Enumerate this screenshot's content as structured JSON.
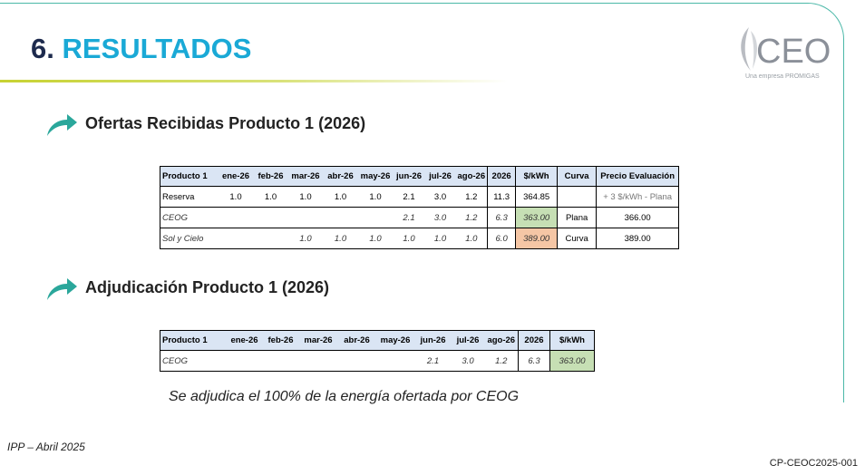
{
  "title": {
    "number": "6.",
    "word": "RESULTADOS"
  },
  "logo": {
    "text": "CEO",
    "subtitle": "Una empresa PROMIGAS"
  },
  "section1": {
    "title": "Ofertas Recibidas Producto 1 (2026)",
    "icon": "arrow-right-icon"
  },
  "section2": {
    "title": "Adjudicación Producto 1 (2026)",
    "icon": "arrow-right-icon"
  },
  "table1": {
    "headers": [
      "Producto 1",
      "ene-26",
      "feb-26",
      "mar-26",
      "abr-26",
      "may-26",
      "jun-26",
      "jul-26",
      "ago-26",
      "2026",
      "$/kWh",
      "Curva",
      "Precio Evaluación"
    ],
    "rows": [
      [
        "Reserva",
        "1.0",
        "1.0",
        "1.0",
        "1.0",
        "1.0",
        "2.1",
        "3.0",
        "1.2",
        "11.3",
        "364.85",
        "",
        "+ 3 $/kWh - Plana"
      ],
      [
        "CEOG",
        "",
        "",
        "",
        "",
        "",
        "2.1",
        "3.0",
        "1.2",
        "6.3",
        "363.00",
        "Plana",
        "366.00"
      ],
      [
        "Sol y Cielo",
        "",
        "",
        "1.0",
        "1.0",
        "1.0",
        "1.0",
        "1.0",
        "1.0",
        "6.0",
        "389.00",
        "Curva",
        "389.00"
      ]
    ]
  },
  "table2": {
    "headers": [
      "Producto 1",
      "ene-26",
      "feb-26",
      "mar-26",
      "abr-26",
      "may-26",
      "jun-26",
      "jul-26",
      "ago-26",
      "2026",
      "$/kWh"
    ],
    "rows": [
      [
        "CEOG",
        "",
        "",
        "",
        "",
        "",
        "2.1",
        "3.0",
        "1.2",
        "6.3",
        "363.00"
      ]
    ]
  },
  "colors": {
    "accent_blue": "#1aa9d6",
    "navy": "#1d2a4d",
    "teal": "#2aa79b",
    "header_fill": "#dae5f4",
    "green_cell": "#c6dfb4",
    "orange_cell": "#f5c6a5"
  },
  "statement": "Se adjudica el 100% de la energía ofertada por CEOG",
  "footer": {
    "left": "IPP – Abril 2025",
    "right": "CP-CEOC2025-001"
  }
}
